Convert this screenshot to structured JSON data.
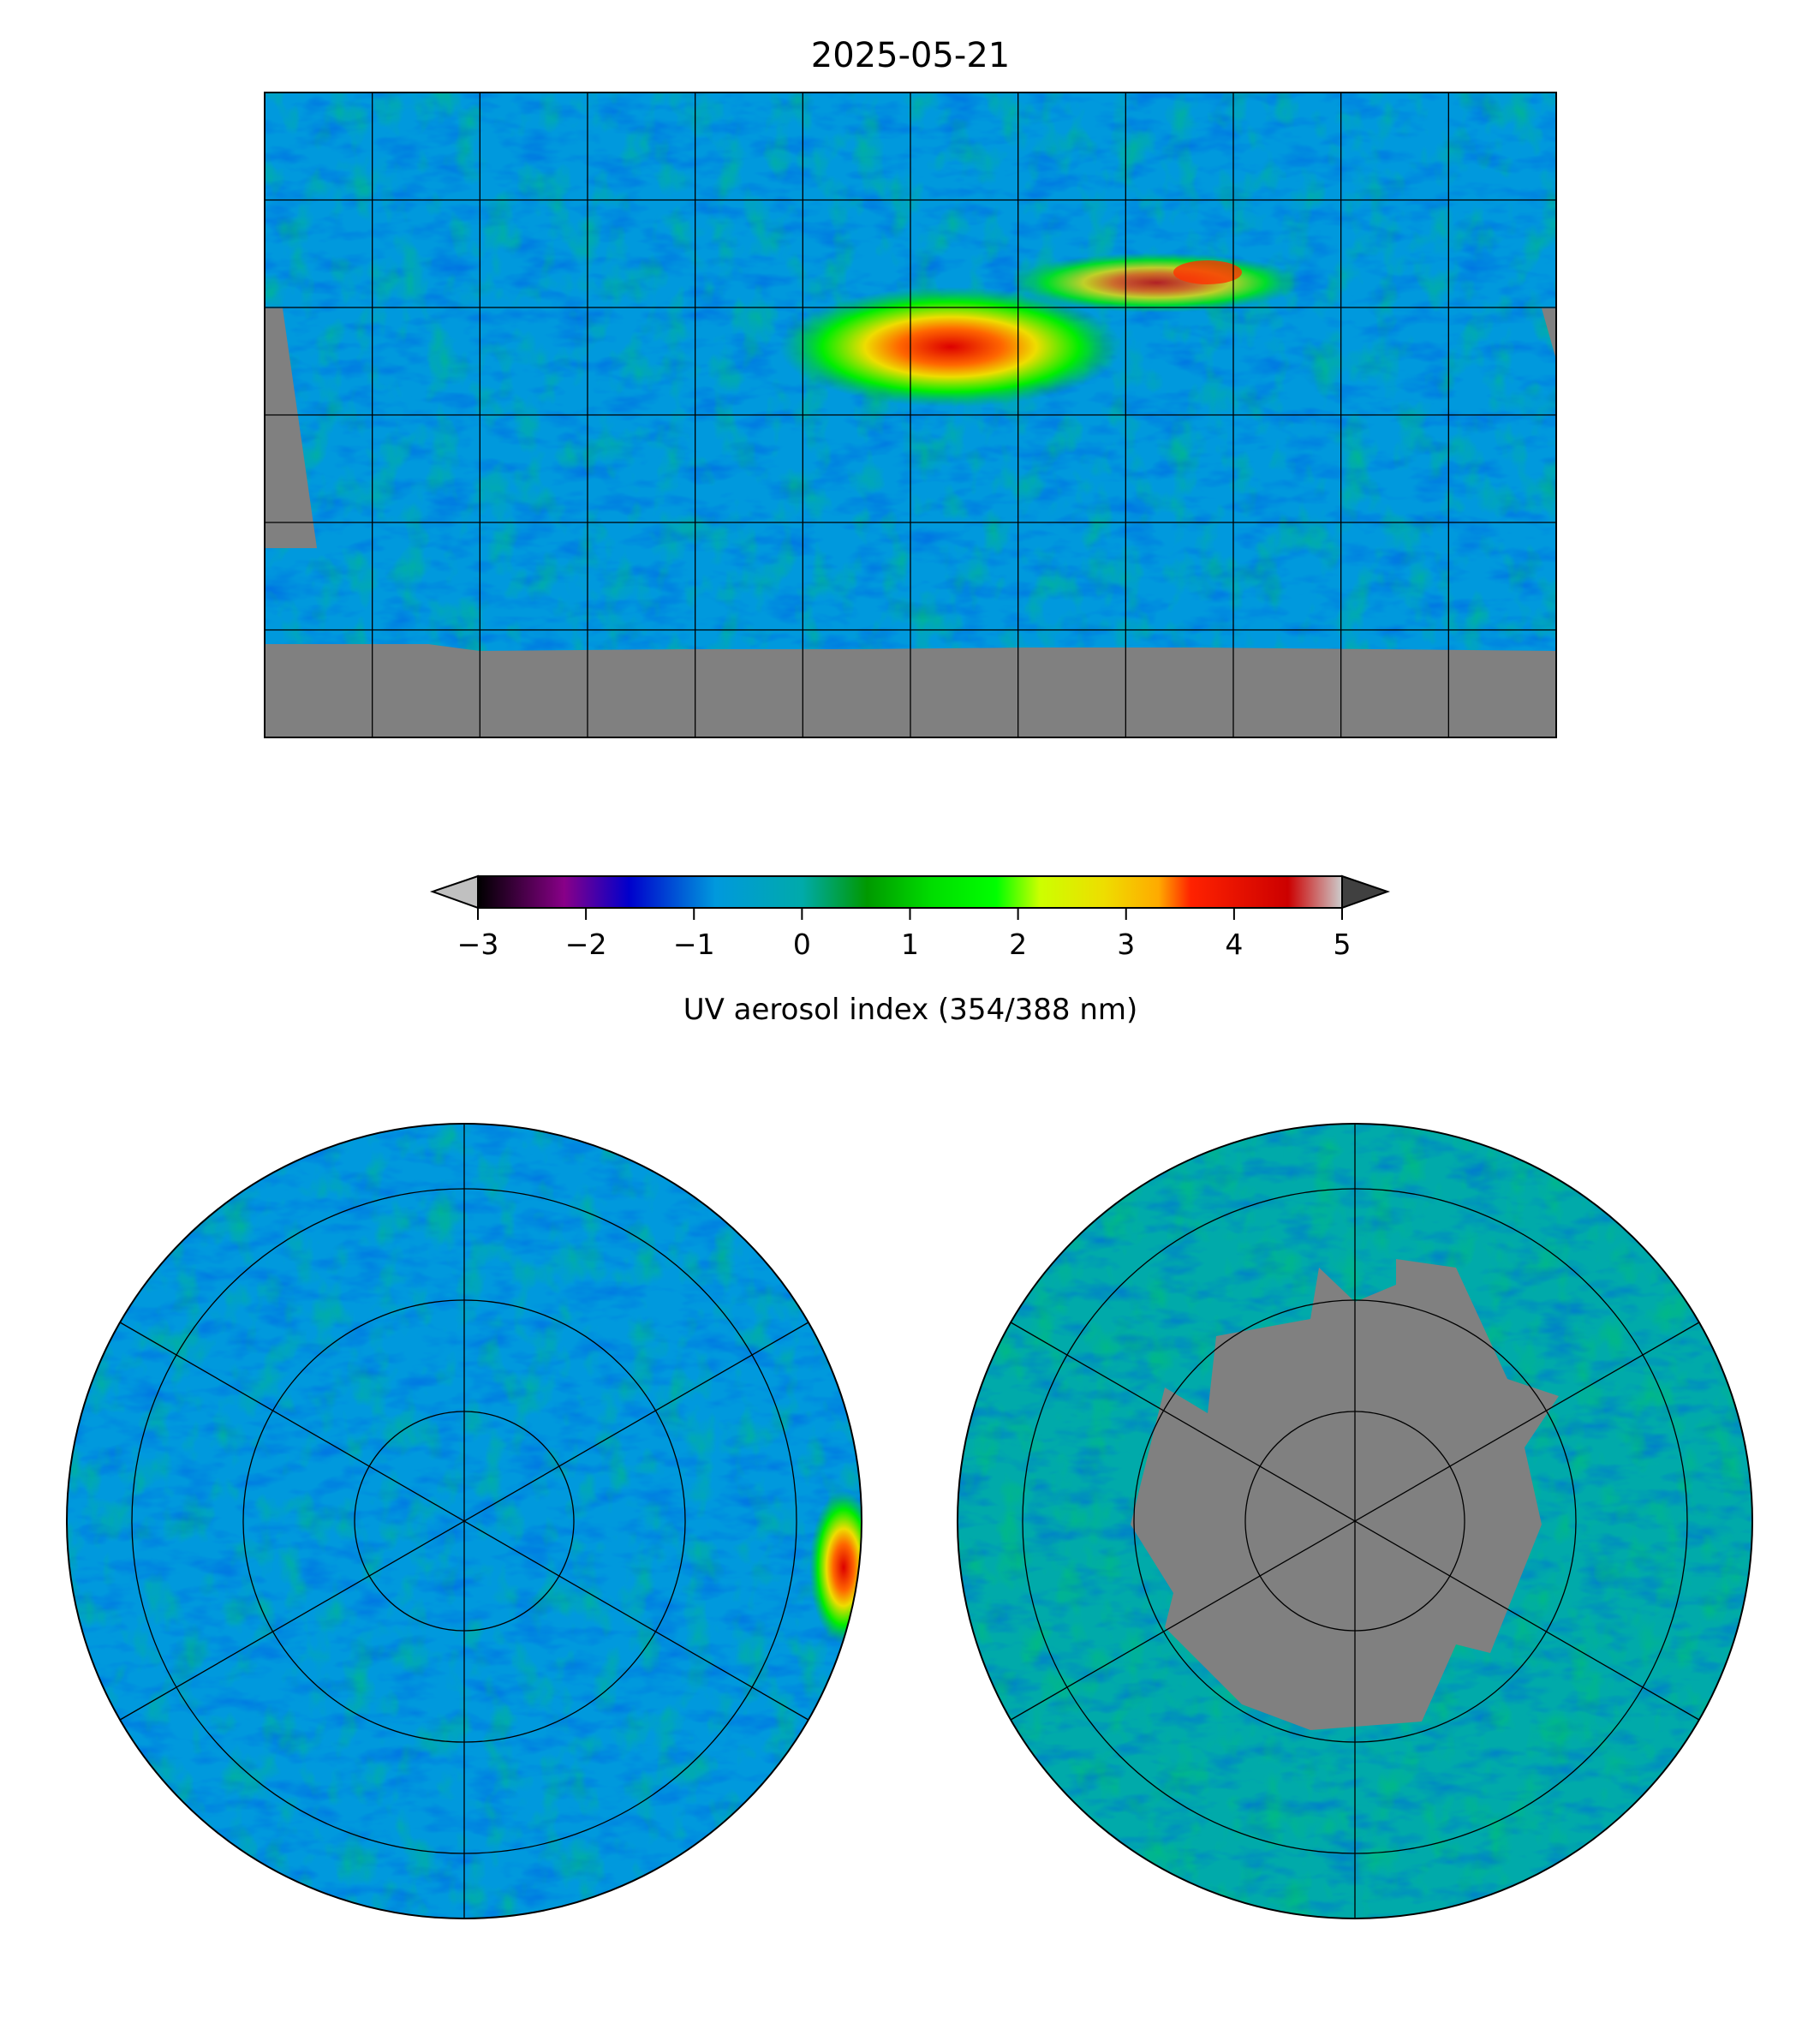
{
  "chart_data": {
    "type": "heatmap",
    "title": "2025-05-21",
    "panels": [
      "global-equirectangular",
      "north-polar-stereographic",
      "south-polar-stereographic"
    ],
    "colorbar": {
      "label": "UV aerosol index (354/388 nm)",
      "range": [
        -3,
        5
      ],
      "ticks": [
        -3,
        -2,
        -1,
        0,
        1,
        2,
        3,
        4,
        5
      ],
      "tick_labels": [
        "−3",
        "−2",
        "−1",
        "0",
        "1",
        "2",
        "3",
        "4",
        "5"
      ],
      "extend": "both",
      "under_color": "#c0c0c0",
      "over_color": "#404040",
      "colormap": [
        {
          "v": -3,
          "c": "#000000"
        },
        {
          "v": -2.2,
          "c": "#880088"
        },
        {
          "v": -1.6,
          "c": "#0000cc"
        },
        {
          "v": -0.8,
          "c": "#0099dd"
        },
        {
          "v": 0,
          "c": "#00aaaa"
        },
        {
          "v": 0.6,
          "c": "#009900"
        },
        {
          "v": 1.2,
          "c": "#00dd00"
        },
        {
          "v": 1.8,
          "c": "#00ff00"
        },
        {
          "v": 2.2,
          "c": "#ccff00"
        },
        {
          "v": 2.8,
          "c": "#eedd00"
        },
        {
          "v": 3.3,
          "c": "#ffaa00"
        },
        {
          "v": 3.6,
          "c": "#ff2200"
        },
        {
          "v": 4.5,
          "c": "#cc0000"
        },
        {
          "v": 5,
          "c": "#cccccc"
        }
      ]
    },
    "map_background": "#0099dd",
    "no_data_color": "#808080",
    "grid": {
      "global_lon_step_deg": 30,
      "global_lat_step_deg": 30,
      "polar_radial_step_deg": 60
    }
  }
}
